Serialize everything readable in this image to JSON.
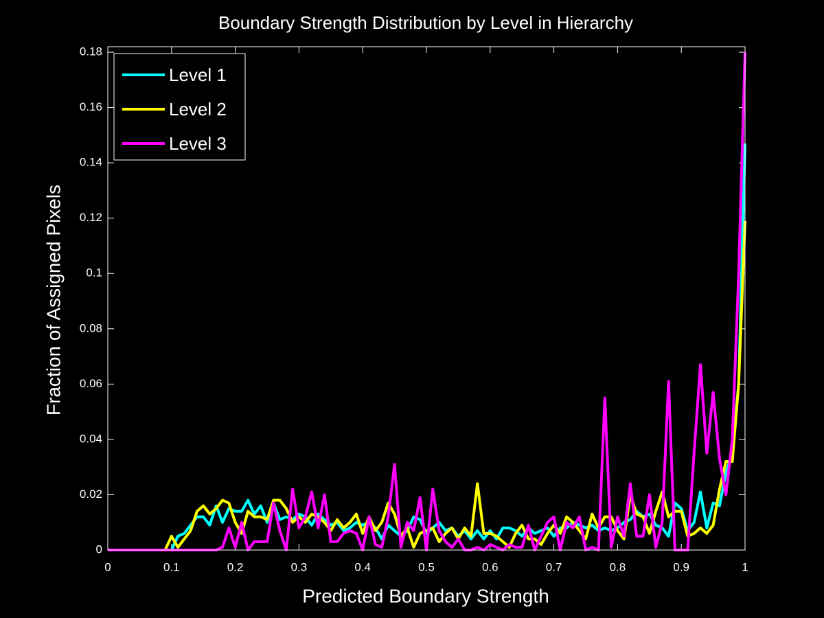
{
  "chart_data": {
    "type": "line",
    "title": "Boundary Strength Distribution by Level in Hierarchy",
    "xlabel": "Predicted Boundary Strength",
    "ylabel": "Fraction of Assigned Pixels",
    "x": [
      0,
      0.01,
      0.02,
      0.03,
      0.04,
      0.05,
      0.06,
      0.07,
      0.08,
      0.09,
      0.1,
      0.11,
      0.12,
      0.13,
      0.14,
      0.15,
      0.16,
      0.17,
      0.18,
      0.19,
      0.2,
      0.21,
      0.22,
      0.23,
      0.24,
      0.25,
      0.26,
      0.27,
      0.28,
      0.29,
      0.3,
      0.31,
      0.32,
      0.33,
      0.34,
      0.35,
      0.36,
      0.37,
      0.38,
      0.39,
      0.4,
      0.41,
      0.42,
      0.43,
      0.44,
      0.45,
      0.46,
      0.47,
      0.48,
      0.49,
      0.5,
      0.51,
      0.52,
      0.53,
      0.54,
      0.55,
      0.56,
      0.57,
      0.58,
      0.59,
      0.6,
      0.61,
      0.62,
      0.63,
      0.64,
      0.65,
      0.66,
      0.67,
      0.68,
      0.69,
      0.7,
      0.71,
      0.72,
      0.73,
      0.74,
      0.75,
      0.76,
      0.77,
      0.78,
      0.79,
      0.8,
      0.81,
      0.82,
      0.83,
      0.84,
      0.85,
      0.86,
      0.87,
      0.88,
      0.89,
      0.9,
      0.91,
      0.92,
      0.93,
      0.94,
      0.95,
      0.96,
      0.97,
      0.98,
      0.99,
      1
    ],
    "series": [
      {
        "name": "Level 1",
        "color": "#00ffff",
        "values": [
          0,
          0,
          0,
          0,
          0,
          0,
          0,
          0,
          0,
          0,
          0,
          0.005,
          0.006,
          0.009,
          0.012,
          0.012,
          0.009,
          0.016,
          0.01,
          0.015,
          0.014,
          0.014,
          0.018,
          0.013,
          0.016,
          0.01,
          0.017,
          0.011,
          0.012,
          0.011,
          0.013,
          0.012,
          0.009,
          0.013,
          0.011,
          0.009,
          0.01,
          0.007,
          0.008,
          0.01,
          0.009,
          0.01,
          0.008,
          0.004,
          0.009,
          0.007,
          0.005,
          0.007,
          0.012,
          0.011,
          0.006,
          0.008,
          0.01,
          0.007,
          0.008,
          0.005,
          0.007,
          0.004,
          0.007,
          0.004,
          0.007,
          0.004,
          0.008,
          0.008,
          0.007,
          0.005,
          0.008,
          0.006,
          0.007,
          0.008,
          0.005,
          0.008,
          0.008,
          0.01,
          0.009,
          0.008,
          0.009,
          0.007,
          0.008,
          0.007,
          0.008,
          0.01,
          0.011,
          0.014,
          0.012,
          0.013,
          0.009,
          0.008,
          0.005,
          0.017,
          0.015,
          0.007,
          0.01,
          0.021,
          0.008,
          0.017,
          0.016,
          0.028,
          0.035,
          0.06,
          0.147
        ]
      },
      {
        "name": "Level 2",
        "color": "#ffff00",
        "values": [
          0,
          0,
          0,
          0,
          0,
          0,
          0,
          0,
          0,
          0,
          0.005,
          0.001,
          0.004,
          0.007,
          0.014,
          0.016,
          0.013,
          0.015,
          0.018,
          0.017,
          0.01,
          0.006,
          0.014,
          0.012,
          0.012,
          0.011,
          0.018,
          0.018,
          0.015,
          0.01,
          0.012,
          0.01,
          0.013,
          0.012,
          0.01,
          0.007,
          0.011,
          0.008,
          0.01,
          0.013,
          0.006,
          0.012,
          0.007,
          0.01,
          0.017,
          0.013,
          0.005,
          0.008,
          0.001,
          0.006,
          0.007,
          0.008,
          0.003,
          0.006,
          0.008,
          0.004,
          0.008,
          0.005,
          0.024,
          0.006,
          0.006,
          0.005,
          0.003,
          0.001,
          0.006,
          0.009,
          0.004,
          0.004,
          0.002,
          0.006,
          0.009,
          0.006,
          0.012,
          0.01,
          0.007,
          0.004,
          0.013,
          0.008,
          0.012,
          0.012,
          0.007,
          0.004,
          0.02,
          0.013,
          0.012,
          0.006,
          0.014,
          0.021,
          0.012,
          0.014,
          0.014,
          0.005,
          0.006,
          0.008,
          0.006,
          0.009,
          0.022,
          0.032,
          0.032,
          0.06,
          0.119
        ]
      },
      {
        "name": "Level 3",
        "color": "#ff00ff",
        "values": [
          0,
          0,
          0,
          0,
          0,
          0,
          0,
          0,
          0,
          0,
          0,
          0,
          0,
          0,
          0,
          0,
          0,
          0,
          0.001,
          0.008,
          0.001,
          0.01,
          0,
          0.003,
          0.003,
          0.003,
          0.017,
          0.007,
          0,
          0.022,
          0.008,
          0.012,
          0.021,
          0.008,
          0.02,
          0.003,
          0.003,
          0.006,
          0.007,
          0.006,
          0,
          0.012,
          0.002,
          0.001,
          0.012,
          0.031,
          0.001,
          0.01,
          0.007,
          0.019,
          0,
          0.022,
          0.007,
          0.003,
          0.001,
          0.004,
          0,
          0,
          0.001,
          0,
          0.002,
          0.001,
          0,
          0.002,
          0.001,
          0.001,
          0.009,
          0,
          0.005,
          0.01,
          0.012,
          0,
          0.01,
          0.008,
          0.012,
          0,
          0.001,
          0,
          0.055,
          0.001,
          0.012,
          0.005,
          0.024,
          0.005,
          0.005,
          0.02,
          0.001,
          0.01,
          0.061,
          0,
          0,
          0,
          0.035,
          0.067,
          0.035,
          0.057,
          0.033,
          0.02,
          0.04,
          0.1,
          0.18
        ]
      }
    ],
    "xlim": [
      0,
      1
    ],
    "xticks": [
      0,
      0.1,
      0.2,
      0.3,
      0.4,
      0.5,
      0.6,
      0.7,
      0.8,
      0.9,
      1
    ],
    "ylim": [
      0,
      0.182
    ],
    "yticks": [
      0,
      0.02,
      0.04,
      0.06,
      0.08,
      0.1,
      0.12,
      0.14,
      0.16,
      0.18
    ],
    "legend": "upper-left",
    "background": "#000000",
    "axis_color": "#ffffff"
  }
}
